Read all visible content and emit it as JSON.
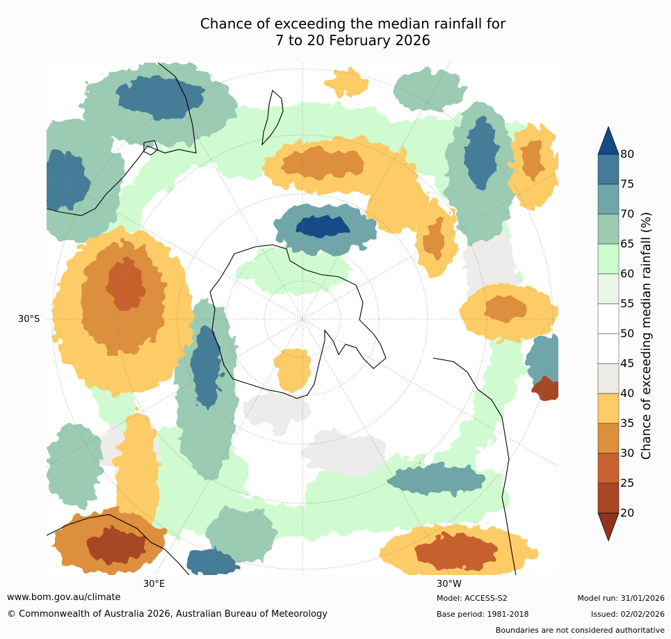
{
  "title": {
    "line1": "Chance of exceeding the median rainfall for",
    "line2": "7 to 20 February 2026"
  },
  "map": {
    "projection": "south-polar-stereographic",
    "latitude_label": "30°S",
    "longitude_labels": [
      "30°E",
      "30°W"
    ]
  },
  "colorbar": {
    "title": "Chance of exceeding median rainfall (%)",
    "ticks": [
      80,
      75,
      70,
      65,
      60,
      55,
      50,
      45,
      40,
      35,
      30,
      25,
      20
    ],
    "bins": [
      {
        "range": "80+",
        "color": "#124c87"
      },
      {
        "range": "75-80",
        "color": "#457b98"
      },
      {
        "range": "70-75",
        "color": "#6fa6a9"
      },
      {
        "range": "65-70",
        "color": "#9ccbb4"
      },
      {
        "range": "60-65",
        "color": "#ccfbcc"
      },
      {
        "range": "55-60",
        "color": "#eaf6ea"
      },
      {
        "range": "50-55",
        "color": "#ffffff"
      },
      {
        "range": "45-50",
        "color": "#ffffff"
      },
      {
        "range": "40-45",
        "color": "#ecebe8"
      },
      {
        "range": "35-40",
        "color": "#fdcc66"
      },
      {
        "range": "30-35",
        "color": "#dc8f3d"
      },
      {
        "range": "25-30",
        "color": "#c8612f"
      },
      {
        "range": "20-25",
        "color": "#a84726"
      },
      {
        "range": "<20",
        "color": "#91321d"
      }
    ]
  },
  "footer": {
    "url": "www.bom.gov.au/climate",
    "copyright": "© Commonwealth of Australia 2026, Australian Bureau of Meteorology",
    "model": "Model: ACCESS-S2",
    "base_period": "Base period: 1981-2018",
    "model_run": "Model run: 31/01/2026",
    "issued": "Issued: 02/02/2026",
    "disclaimer": "Boundaries are not considered authoritative"
  }
}
